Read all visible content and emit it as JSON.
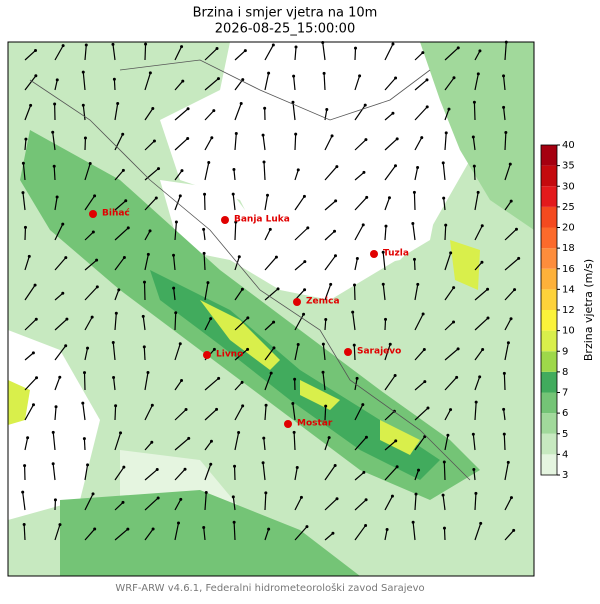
{
  "title": "Brzina i smjer vjetra na 10m",
  "subtitle": "2026-08-25_15:00:00",
  "cities": [
    "Bihać",
    "Banja Luka",
    "Tuzla",
    "Zenica",
    "Livno",
    "Sarajevo",
    "Mostar"
  ],
  "colorbar": {
    "label": "Brzina vjetra (m/s)",
    "ticks": [
      3,
      4,
      5,
      6,
      7,
      8,
      9,
      10,
      12,
      14,
      16,
      18,
      20,
      25,
      30,
      35,
      40
    ],
    "colors": [
      "#e5f5e0",
      "#c7e9c0",
      "#a1d99b",
      "#74c476",
      "#41ab5d",
      "#9ed84a",
      "#d9ef4b",
      "#fbf33a",
      "#fdd23a",
      "#fdb13a",
      "#fd8d3c",
      "#fc6a2b",
      "#f44a1f",
      "#e31a1c",
      "#c40a0e",
      "#a50010"
    ]
  },
  "footer": "WRF-ARW v4.6.1, Federalni hidrometeorološki zavod Sarajevo"
}
